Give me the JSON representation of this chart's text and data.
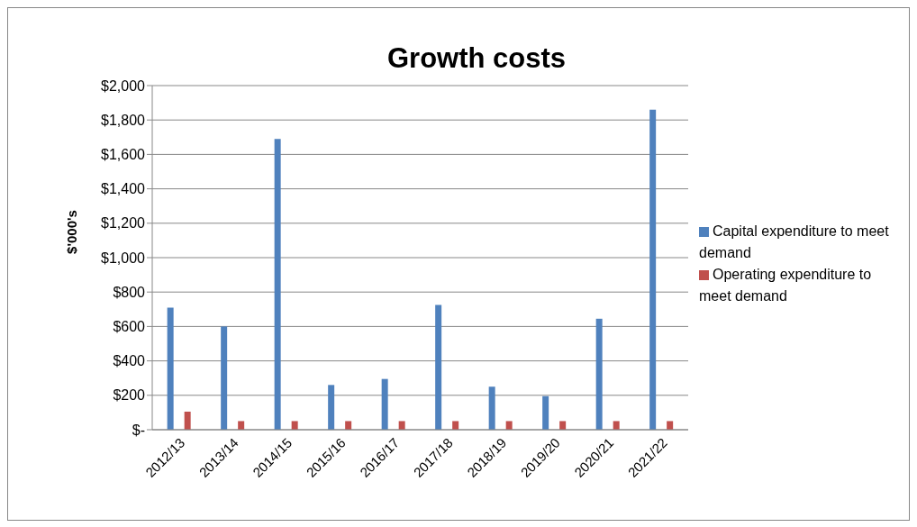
{
  "chart_data": {
    "type": "bar",
    "title": "Growth costs",
    "ylabel": "$'000's",
    "categories": [
      "2012/13",
      "2013/14",
      "2014/15",
      "2015/16",
      "2016/17",
      "2017/18",
      "2018/19",
      "2019/20",
      "2020/21",
      "2021/22"
    ],
    "series": [
      {
        "name": "Capital expenditure to meet demand",
        "color": "#4f81bd",
        "values": [
          710,
          600,
          1690,
          260,
          295,
          725,
          250,
          195,
          645,
          1860
        ]
      },
      {
        "name": "Operating expenditure to meet demand",
        "color": "#c0504d",
        "values": [
          105,
          50,
          50,
          50,
          50,
          50,
          50,
          50,
          50,
          50
        ]
      }
    ],
    "ylim": [
      0,
      2000
    ],
    "yticks": [
      {
        "value": 0,
        "label": "$-"
      },
      {
        "value": 200,
        "label": "$200"
      },
      {
        "value": 400,
        "label": "$400"
      },
      {
        "value": 600,
        "label": "$600"
      },
      {
        "value": 800,
        "label": "$800"
      },
      {
        "value": 1000,
        "label": "$1,000"
      },
      {
        "value": 1200,
        "label": "$1,200"
      },
      {
        "value": 1400,
        "label": "$1,400"
      },
      {
        "value": 1600,
        "label": "$1,600"
      },
      {
        "value": 1800,
        "label": "$1,800"
      },
      {
        "value": 2000,
        "label": "$2,000"
      }
    ],
    "grid": "y",
    "legend": "right"
  }
}
